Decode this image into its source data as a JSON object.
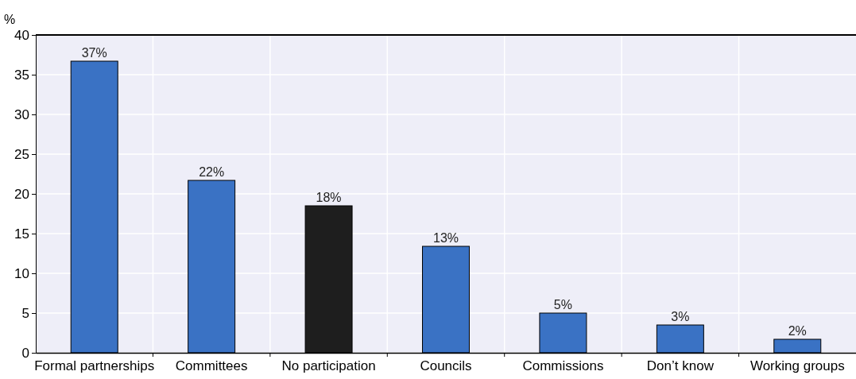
{
  "chart_data": {
    "type": "bar",
    "ylabel": "%",
    "categories": [
      "Formal partnerships",
      "Committees",
      "No participation",
      "Councils",
      "Commissions",
      "Don’t know",
      "Working groups"
    ],
    "values": [
      36.7,
      21.7,
      18.5,
      13.4,
      5.0,
      3.5,
      1.7
    ],
    "colors": [
      "#3a72c4",
      "#3a72c4",
      "#1e1e1e",
      "#3a72c4",
      "#3a72c4",
      "#3a72c4",
      "#3a72c4"
    ],
    "value_labels": [
      "37%",
      "22%",
      "18%",
      "13%",
      "5%",
      "3%",
      "2%"
    ],
    "ylim": [
      0,
      40
    ],
    "yticks": [
      0,
      5,
      10,
      15,
      20,
      25,
      30,
      35,
      40
    ],
    "grid": true
  }
}
